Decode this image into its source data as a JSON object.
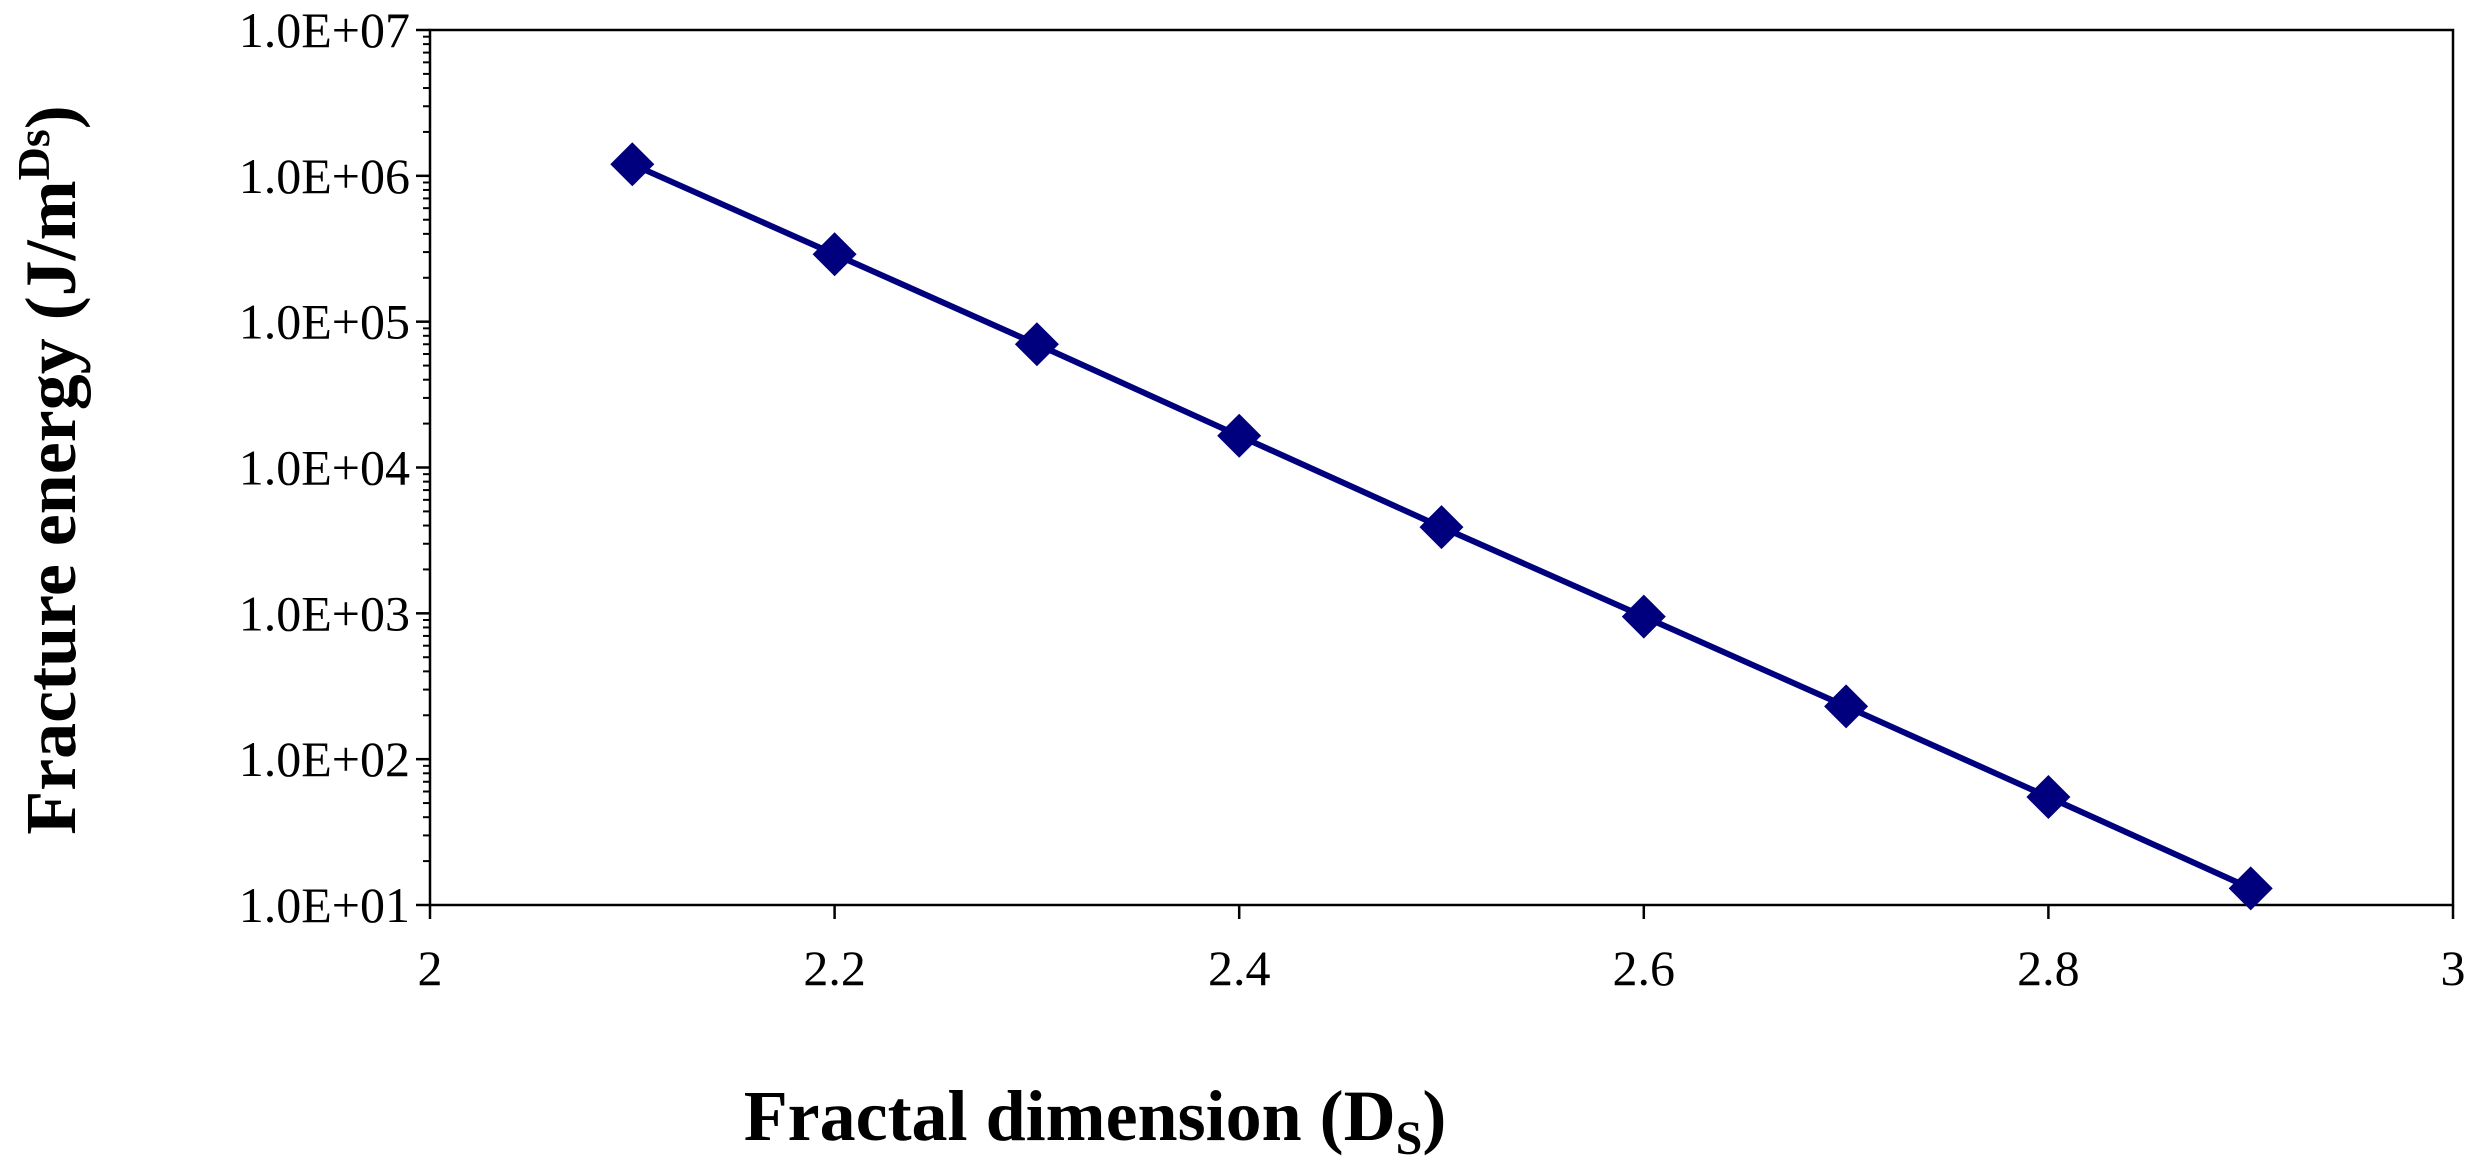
{
  "chart_data": {
    "type": "line",
    "xlabel": {
      "main": "Fractal dimension (D",
      "sub": "S",
      "close": ")"
    },
    "ylabel": {
      "main": "Fracture energy (J/m",
      "sup": "Ds",
      "close": ")"
    },
    "xlim": [
      2,
      3
    ],
    "ylim": [
      10,
      10000000
    ],
    "yscale": "log",
    "grid": false,
    "x_ticks": [
      "2",
      "2.2",
      "2.4",
      "2.6",
      "2.8",
      "3"
    ],
    "y_ticks": [
      "1.0E+01",
      "1.0E+02",
      "1.0E+03",
      "1.0E+04",
      "1.0E+05",
      "1.0E+06",
      "1.0E+07"
    ],
    "series": [
      {
        "color": "#00007F",
        "marker": "diamond",
        "x": [
          2.1,
          2.2,
          2.3,
          2.4,
          2.5,
          2.6,
          2.7,
          2.8,
          2.9
        ],
        "values": [
          1200000,
          290000,
          70000,
          16500,
          3900,
          950,
          230,
          55,
          13
        ]
      }
    ]
  }
}
